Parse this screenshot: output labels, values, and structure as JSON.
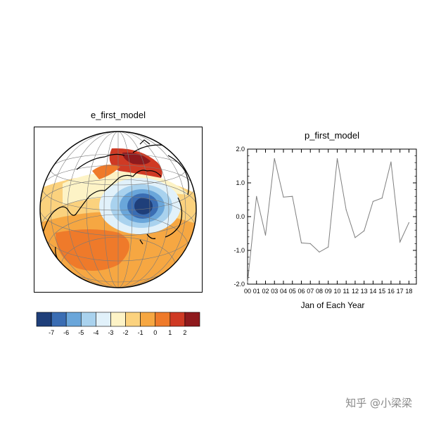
{
  "watermark": "知乎 @小梁梁",
  "map": {
    "title": "e_first_model",
    "colorbar": {
      "levels": [
        "-7",
        "-6",
        "-5",
        "-4",
        "-3",
        "-2",
        "-1",
        "0",
        "1",
        "2"
      ],
      "colors": [
        "#1f3f7a",
        "#3a6db3",
        "#6aa6da",
        "#a9d2ee",
        "#e1f1fa",
        "#fdf3c6",
        "#fbd27e",
        "#f6a742",
        "#ef7a2a",
        "#cf3a24",
        "#8f1a1d"
      ]
    }
  },
  "chart_data": {
    "type": "line",
    "title": "p_first_model",
    "xlabel": "Jan of Each Year",
    "ylabel": "",
    "x": [
      "00",
      "01",
      "02",
      "03",
      "04",
      "05",
      "06",
      "07",
      "08",
      "09",
      "10",
      "11",
      "12",
      "13",
      "14",
      "15",
      "16",
      "17",
      "18"
    ],
    "series": [
      {
        "values": [
          -1.95,
          0.6,
          -0.55,
          1.72,
          0.58,
          0.6,
          -0.78,
          -0.8,
          -1.05,
          -0.9,
          1.72,
          0.2,
          -0.62,
          -0.42,
          0.45,
          0.55,
          1.62,
          -0.75,
          -0.18
        ]
      }
    ],
    "yticks": [
      "2.0",
      "1.0",
      "0.0",
      "-1.0",
      "-2.0"
    ],
    "ylim": [
      -2.0,
      2.0
    ],
    "grid": false,
    "line_color": "#7f7f7f"
  }
}
